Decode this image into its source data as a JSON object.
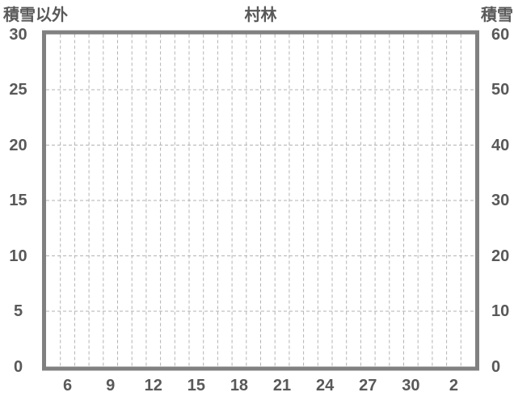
{
  "chart_data": {
    "type": "line",
    "title": "村林",
    "series": [],
    "x": {
      "tick_labels": [
        "6",
        "9",
        "12",
        "15",
        "18",
        "21",
        "24",
        "27",
        "30",
        "2"
      ],
      "slot_count": 30,
      "first_label_slot": 1,
      "label_step": 3,
      "minor_gridlines": true
    },
    "y_left": {
      "title": "積雪以外",
      "ticks": [
        0,
        5,
        10,
        15,
        20,
        25,
        30
      ],
      "range": [
        0,
        30
      ]
    },
    "y_right": {
      "title": "積雪",
      "ticks": [
        0,
        10,
        20,
        30,
        40,
        50,
        60
      ],
      "range": [
        0,
        60
      ]
    },
    "grid": {
      "vertical": "dashed-minor",
      "horizontal": "dashed-major",
      "legend": "none"
    },
    "colors": {
      "background": "#ffffff",
      "border": "#808080",
      "gridline": "#b3b3b3",
      "text": "#595959"
    }
  }
}
